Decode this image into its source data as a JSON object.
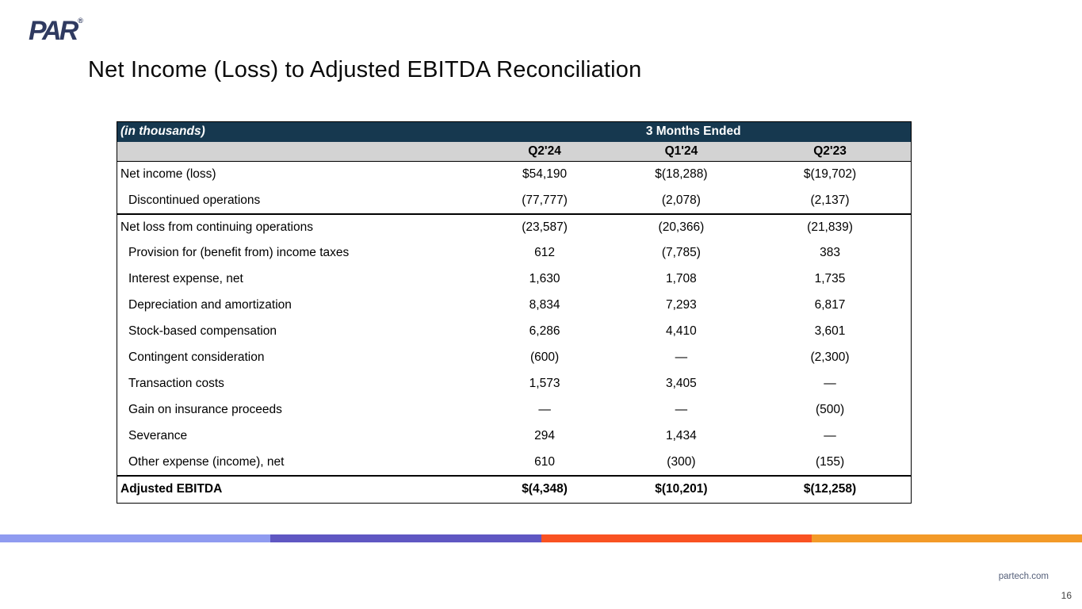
{
  "logo": {
    "text": "PAR",
    "registered_mark": "®"
  },
  "slide": {
    "title": "Net Income (Loss) to Adjusted EBITDA Reconciliation",
    "footer_link": "partech.com",
    "page_number": "16"
  },
  "table": {
    "unit_label": "(in thousands)",
    "period_header": "3 Months Ended",
    "columns": [
      "Q2'24",
      "Q1'24",
      "Q2'23"
    ],
    "rows": [
      {
        "label": "Net income (loss)",
        "values": [
          "$54,190",
          "$(18,288)",
          "$(19,702)"
        ]
      },
      {
        "label": "Discontinued operations",
        "values": [
          "(77,777)",
          "(2,078)",
          "(2,137)"
        ]
      },
      {
        "label": "Net loss from continuing operations",
        "values": [
          "(23,587)",
          "(20,366)",
          "(21,839)"
        ]
      },
      {
        "label": "Provision for (benefit from) income taxes",
        "values": [
          "612",
          "(7,785)",
          "383"
        ]
      },
      {
        "label": "Interest expense, net",
        "values": [
          "1,630",
          "1,708",
          "1,735"
        ]
      },
      {
        "label": "Depreciation and amortization",
        "values": [
          "8,834",
          "7,293",
          "6,817"
        ]
      },
      {
        "label": "Stock-based compensation",
        "values": [
          "6,286",
          "4,410",
          "3,601"
        ]
      },
      {
        "label": "Contingent consideration",
        "values": [
          "(600)",
          "—",
          "(2,300)"
        ]
      },
      {
        "label": "Transaction costs",
        "values": [
          "1,573",
          "3,405",
          "—"
        ]
      },
      {
        "label": "Gain on insurance proceeds",
        "values": [
          "—",
          "—",
          "(500)"
        ]
      },
      {
        "label": "Severance",
        "values": [
          "294",
          "1,434",
          "—"
        ]
      },
      {
        "label": "Other expense (income), net",
        "values": [
          "610",
          "(300)",
          "(155)"
        ]
      },
      {
        "label": "Adjusted EBITDA",
        "values": [
          "$(4,348)",
          "$(10,201)",
          "$(12,258)"
        ]
      }
    ]
  },
  "colors": {
    "header_navy": "#16384F",
    "subheader_gray": "#D3D3D3",
    "logo_navy": "#2F3A60"
  },
  "stripe": {
    "segments": [
      {
        "name": "periwinkle",
        "color": "#8F9BF0"
      },
      {
        "name": "purple",
        "color": "#5F57C2"
      },
      {
        "name": "orange-red",
        "color": "#F95222"
      },
      {
        "name": "orange",
        "color": "#F39A28"
      }
    ]
  }
}
